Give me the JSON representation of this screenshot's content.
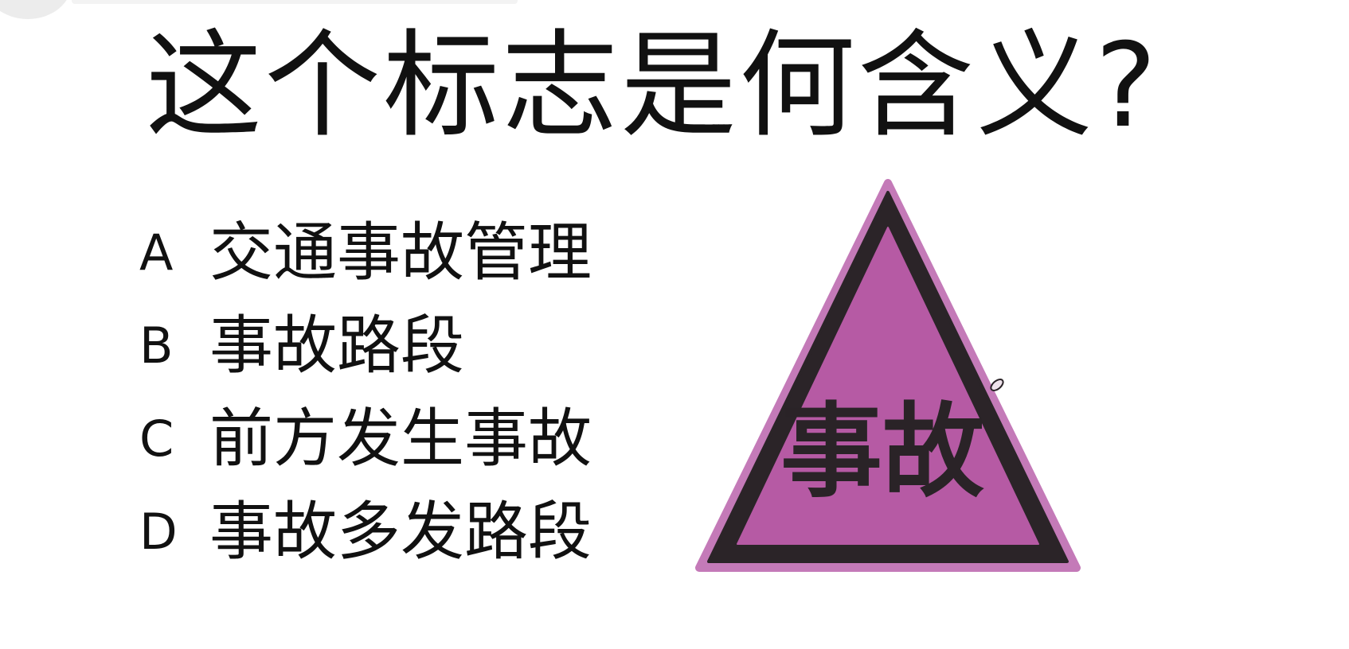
{
  "question": {
    "title": "这个标志是何含义?"
  },
  "options": [
    {
      "letter": "A",
      "text": "交通事故管理"
    },
    {
      "letter": "B",
      "text": "事故路段"
    },
    {
      "letter": "C",
      "text": "前方发生事故"
    },
    {
      "letter": "D",
      "text": "事故多发路段"
    }
  ],
  "sign": {
    "text": "事故",
    "icon": "accident-warning-triangle-icon",
    "colors": {
      "fill": "#b65aa4",
      "border": "#2b2428",
      "outline": "#c47ab8",
      "text": "#2a2327"
    }
  }
}
